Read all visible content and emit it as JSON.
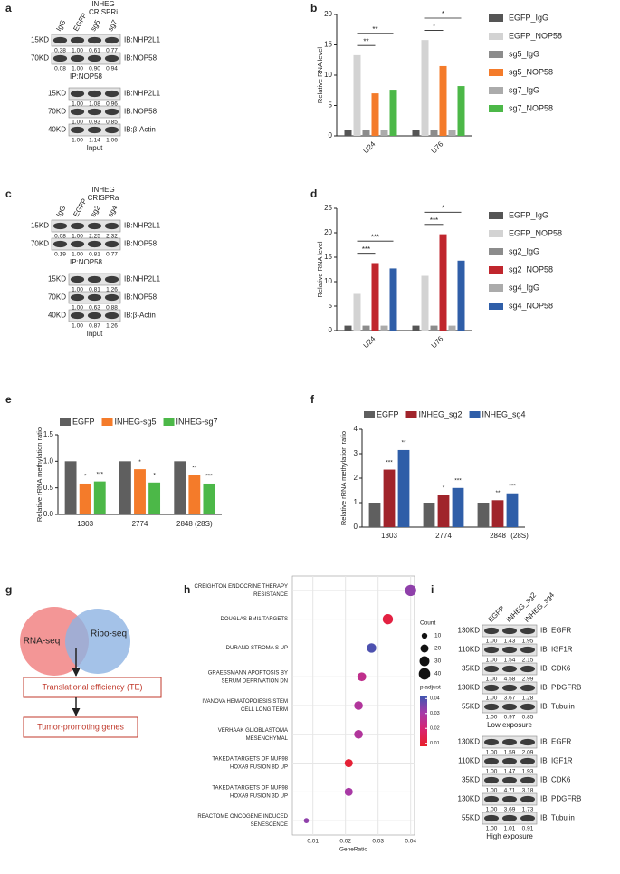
{
  "panel_labels": [
    "a",
    "b",
    "c",
    "d",
    "e",
    "f",
    "g",
    "h",
    "i"
  ],
  "blots": [
    {
      "lanes": [
        "IgG",
        "EGFP"
      ],
      "group_label": [
        "INHEG",
        "CRISPRi"
      ],
      "group_lanes": [
        "sg5",
        "sg7"
      ],
      "sections": [
        {
          "rows": [
            {
              "marker": "15KD",
              "label": "IB:NHP2L1",
              "quant": [
                "0.38",
                "1.00",
                "0.61",
                "0.77"
              ]
            },
            {
              "marker": "70KD",
              "label": "IB:NOP58",
              "quant": [
                "0.08",
                "1.00",
                "0.90",
                "0.94"
              ]
            }
          ],
          "caption": "IP:NOP58"
        },
        {
          "rows": [
            {
              "marker": "15KD",
              "label": "IB:NHP2L1",
              "quant": [
                "1.00",
                "1.08",
                "0.96"
              ]
            },
            {
              "marker": "70KD",
              "label": "IB:NOP58",
              "quant": [
                "1.00",
                "0.93",
                "0.85"
              ]
            },
            {
              "marker": "40KD",
              "label": "IB:β-Actin",
              "quant": [
                "1.00",
                "1.14",
                "1.06"
              ]
            }
          ],
          "caption": "Input"
        }
      ]
    },
    {
      "lanes": [
        "IgG",
        "EGFP"
      ],
      "group_label": [
        "INHEG",
        "CRISPRa"
      ],
      "group_lanes": [
        "sg2",
        "sg4"
      ],
      "sections": [
        {
          "rows": [
            {
              "marker": "15KD",
              "label": "IB:NHP2L1",
              "quant": [
                "0.08",
                "1.00",
                "2.25",
                "2.32"
              ]
            },
            {
              "marker": "70KD",
              "label": "IB:NOP58",
              "quant": [
                "0.19",
                "1.00",
                "0.81",
                "0.77"
              ]
            }
          ],
          "caption": "IP:NOP58"
        },
        {
          "rows": [
            {
              "marker": "15KD",
              "label": "IB:NHP2L1",
              "quant": [
                "1.00",
                "0.81",
                "1.26"
              ]
            },
            {
              "marker": "70KD",
              "label": "IB:NOP58",
              "quant": [
                "1.00",
                "0.63",
                "0.88"
              ]
            },
            {
              "marker": "40KD",
              "label": "IB:β-Actin",
              "quant": [
                "1.00",
                "0.87",
                "1.26"
              ]
            }
          ],
          "caption": "Input"
        }
      ]
    },
    {
      "lanes": [
        "EGFP",
        "INHEG_sg2",
        "INHEG_sg4"
      ],
      "sections": [
        {
          "rows": [
            {
              "marker": "130KD",
              "label": "IB: EGFR",
              "quant": [
                "1.00",
                "1.43",
                "1.95"
              ]
            },
            {
              "marker": "110KD",
              "label": "IB: IGF1R",
              "quant": [
                "1.00",
                "1.54",
                "2.15"
              ]
            },
            {
              "marker": "35KD",
              "label": "IB: CDK6",
              "quant": [
                "1.00",
                "4.58",
                "2.99"
              ]
            },
            {
              "marker": "130KD",
              "label": "IB: PDGFRB",
              "quant": [
                "1.00",
                "3.67",
                "1.28"
              ]
            },
            {
              "marker": "55KD",
              "label": "IB: Tubulin",
              "quant": [
                "1.00",
                "0.97",
                "0.85"
              ]
            }
          ],
          "caption": "Low exposure"
        },
        {
          "rows": [
            {
              "marker": "130KD",
              "label": "IB: EGFR",
              "quant": [
                "1.00",
                "1.59",
                "2.09"
              ]
            },
            {
              "marker": "110KD",
              "label": "IB: IGF1R",
              "quant": [
                "1.00",
                "1.47",
                "1.93"
              ]
            },
            {
              "marker": "35KD",
              "label": "IB: CDK6",
              "quant": [
                "1.00",
                "4.71",
                "3.18"
              ]
            },
            {
              "marker": "130KD",
              "label": "IB: PDGFRB",
              "quant": [
                "1.00",
                "3.69",
                "1.73"
              ]
            },
            {
              "marker": "55KD",
              "label": "IB: Tubulin",
              "quant": [
                "1.00",
                "1.01",
                "0.91"
              ]
            }
          ],
          "caption": "High exposure"
        }
      ]
    }
  ],
  "diagram": {
    "circles": [
      "RNA-seq",
      "Ribo-seq"
    ],
    "steps": [
      "Translational efficiency (TE)",
      "Tumor-promoting genes"
    ]
  },
  "chart_data": [
    {
      "type": "bar",
      "ylabel": "Relative RNA level",
      "categories": [
        "U24",
        "U76"
      ],
      "ylim": [
        0,
        20
      ],
      "yticks": [
        0,
        5,
        10,
        15,
        20
      ],
      "legend": "right",
      "series": [
        {
          "name": "EGFP_IgG",
          "color": "#555555",
          "values": [
            1,
            1
          ]
        },
        {
          "name": "EGFP_NOP58",
          "color": "#d3d3d3",
          "values": [
            13.3,
            15.8
          ]
        },
        {
          "name": "sg5_IgG",
          "color": "#8c8c8c",
          "values": [
            1,
            1
          ]
        },
        {
          "name": "sg5_NOP58",
          "color": "#f47b2a",
          "values": [
            7,
            11.5
          ],
          "brackets": [
            "**",
            "*"
          ]
        },
        {
          "name": "sg7_IgG",
          "color": "#ababab",
          "values": [
            1,
            1
          ]
        },
        {
          "name": "sg7_NOP58",
          "color": "#4cb848",
          "values": [
            7.6,
            8.2
          ],
          "brackets": [
            "**",
            "*"
          ]
        }
      ]
    },
    {
      "type": "bar",
      "ylabel": "Relative RNA level",
      "categories": [
        "U24",
        "U76"
      ],
      "ylim": [
        0,
        25
      ],
      "yticks": [
        0,
        5,
        10,
        15,
        20,
        25
      ],
      "legend": "right",
      "series": [
        {
          "name": "EGFP_IgG",
          "color": "#555555",
          "values": [
            1,
            1
          ]
        },
        {
          "name": "EGFP_NOP58",
          "color": "#d3d3d3",
          "values": [
            7.5,
            11.2
          ]
        },
        {
          "name": "sg2_IgG",
          "color": "#8c8c8c",
          "values": [
            1,
            1
          ]
        },
        {
          "name": "sg2_NOP58",
          "color": "#c0262d",
          "values": [
            13.8,
            19.7
          ],
          "brackets": [
            "***",
            "***"
          ]
        },
        {
          "name": "sg4_IgG",
          "color": "#ababab",
          "values": [
            1,
            1
          ]
        },
        {
          "name": "sg4_NOP58",
          "color": "#2f5ea8",
          "values": [
            12.7,
            14.3
          ],
          "brackets": [
            "***",
            "*"
          ]
        }
      ]
    },
    {
      "type": "bar",
      "ylabel": "Relative rRNA methylation ratio",
      "categories": [
        "1303",
        "2774",
        "2848 (28S)"
      ],
      "ylim": [
        0,
        1.5
      ],
      "yticks": [
        {
          "value": 0,
          "label": "0.0"
        },
        {
          "value": 0.5,
          "label": "0.5"
        },
        {
          "value": 1,
          "label": "1.0"
        },
        {
          "value": 1.5,
          "label": "1.5"
        }
      ],
      "legend": "top",
      "series": [
        {
          "name": "EGFP",
          "color": "#5f5f5f",
          "values": [
            1,
            1,
            1
          ]
        },
        {
          "name": "INHEG-sg5",
          "color": "#f47b2a",
          "values": [
            0.58,
            0.85,
            0.74
          ],
          "stars": [
            "*",
            "*",
            "**"
          ]
        },
        {
          "name": "INHEG-sg7",
          "color": "#4cb848",
          "values": [
            0.62,
            0.6,
            0.58
          ],
          "stars": [
            "***",
            "*",
            "***"
          ]
        }
      ]
    },
    {
      "type": "bar",
      "ylabel": "Relative rRNA methylation ratio",
      "categories": [
        "1303",
        "2774",
        "2848"
      ],
      "x_note": "(28S)",
      "ylim": [
        0,
        4
      ],
      "yticks": [
        0,
        1,
        2,
        3,
        4
      ],
      "legend": "top",
      "series": [
        {
          "name": "EGFP",
          "color": "#5f5f5f",
          "values": [
            1,
            1,
            1
          ]
        },
        {
          "name": "INHEG_sg2",
          "color": "#a0242b",
          "values": [
            2.35,
            1.3,
            1.1
          ],
          "stars": [
            "***",
            "*",
            "**"
          ]
        },
        {
          "name": "INHEG_sg4",
          "color": "#2f5ea8",
          "values": [
            3.15,
            1.6,
            1.38
          ],
          "stars": [
            "**",
            "***",
            "***"
          ]
        }
      ]
    },
    {
      "type": "dot",
      "xlabel": "GeneRatio",
      "categories": [
        [
          "CREIGHTON ENDOCRINE THERAPY",
          "RESISTANCE"
        ],
        [
          "DOUGLAS BMI1 TARGETS"
        ],
        [
          "DURAND STROMA S UP"
        ],
        [
          "GRAESSMANN APOPTOSIS BY",
          "SERUM DEPRIVATION DN"
        ],
        [
          "IVANOVA HEMATOPOIESIS STEM",
          "CELL LONG TERM"
        ],
        [
          "VERHAAK GLIOBLASTOMA",
          "MESENCHYMAL"
        ],
        [
          "TAKEDA TARGETS OF NUP98",
          "HOXA9 FUSION 8D UP"
        ],
        [
          "TAKEDA TARGETS OF NUP98",
          "HOXA9 FUSION 3D UP"
        ],
        [
          "REACTOME ONCOGENE INDUCED",
          "SENESCENCE"
        ]
      ],
      "x": [
        0.04,
        0.033,
        0.028,
        0.025,
        0.024,
        0.024,
        0.021,
        0.021,
        0.008
      ],
      "size": [
        38,
        32,
        27,
        24,
        23,
        23,
        20,
        20,
        8
      ],
      "color_values": [
        0.033,
        0.012,
        0.04,
        0.025,
        0.028,
        0.028,
        0.01,
        0.03,
        0.033
      ],
      "xlim": [
        0.0037,
        0.0412
      ],
      "xticks": [
        0.01,
        0.02,
        0.03,
        0.04
      ],
      "grid": true,
      "size_title": "Count",
      "size_ticks": [
        10,
        20,
        30,
        40
      ],
      "color_title": "p.adjust",
      "clim": [
        0.008,
        0.042
      ],
      "cticks": [
        0.04,
        0.03,
        0.02,
        0.01
      ],
      "colors": [
        "#e8202a",
        "#d9246f",
        "#a53aa8",
        "#3a56b0"
      ]
    }
  ]
}
